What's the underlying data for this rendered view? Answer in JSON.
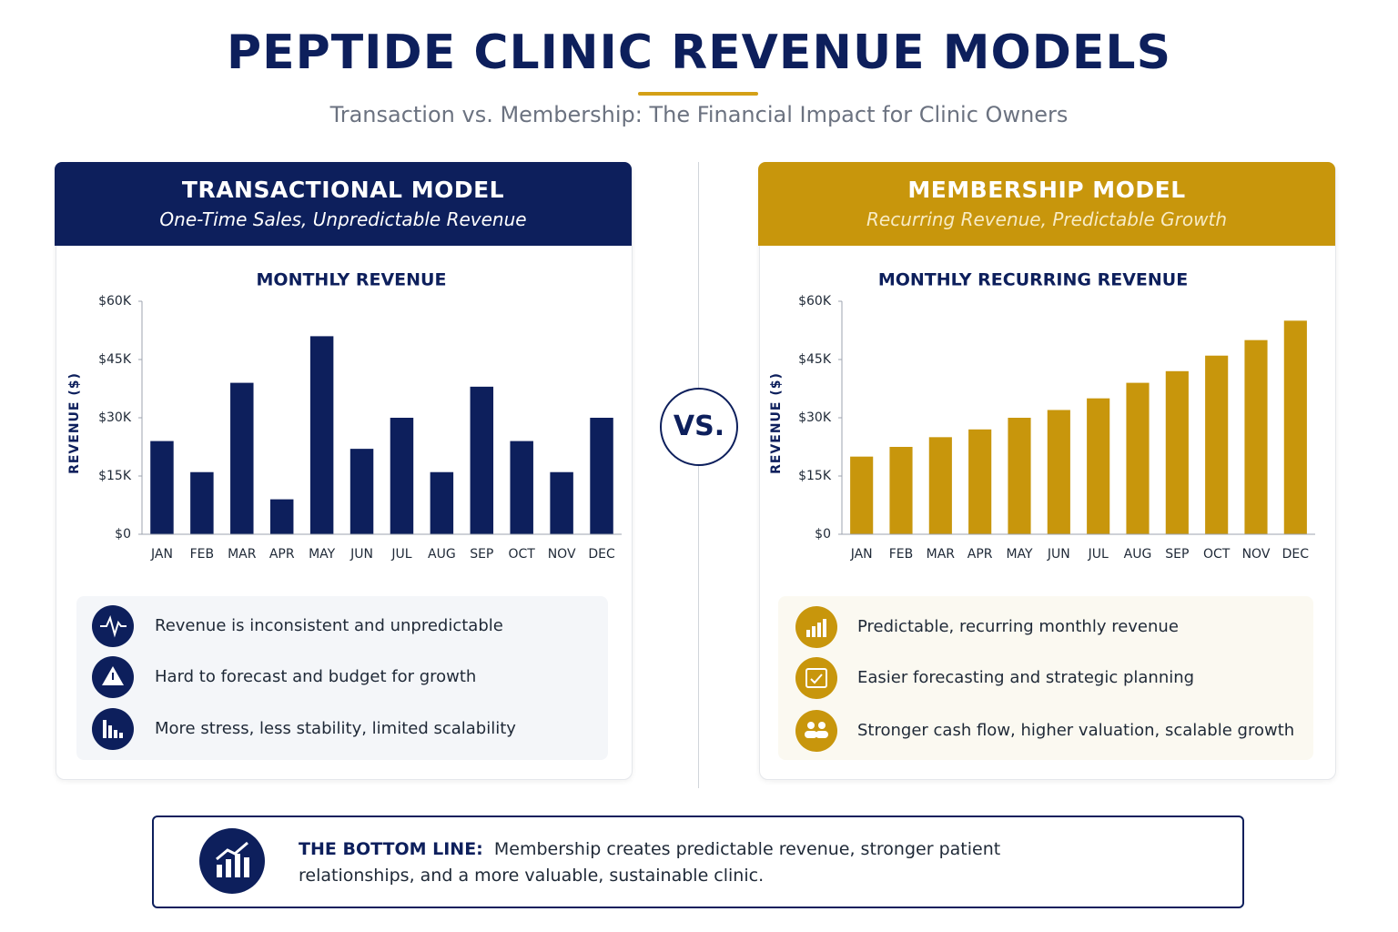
{
  "header": {
    "title": "PEPTIDE CLINIC REVENUE MODELS",
    "subtitle": "Transaction vs. Membership: The Financial Impact for Clinic Owners"
  },
  "vs": "VS.",
  "panels": [
    {
      "title": "TRANSACTIONAL MODEL",
      "subtitle": "One-Time Sales, Unpredictable Revenue",
      "points": [
        "Revenue is inconsistent and unpredictable",
        "Hard to forecast and budget for growth",
        "More stress, less stability, limited scalability"
      ]
    },
    {
      "title": "MEMBERSHIP MODEL",
      "subtitle": "Recurring Revenue, Predictable Growth",
      "points": [
        "Predictable, recurring monthly revenue",
        "Easier forecasting and strategic planning",
        "Stronger cash flow, higher valuation, scalable growth"
      ]
    }
  ],
  "chart_data": [
    {
      "type": "bar",
      "title": "MONTHLY REVENUE",
      "y_label": "REVENUE ($)",
      "categories": [
        "JAN",
        "FEB",
        "MAR",
        "APR",
        "MAY",
        "JUN",
        "JUL",
        "AUG",
        "SEP",
        "OCT",
        "NOV",
        "DEC"
      ],
      "values": [
        24000,
        16000,
        39000,
        9000,
        51000,
        22000,
        30000,
        16000,
        38000,
        24000,
        16000,
        30000
      ],
      "color": "#0d1f5c",
      "ylim": [
        0,
        60000
      ],
      "yticks": [
        {
          "value": 0,
          "label": "$0"
        },
        {
          "value": 15000,
          "label": "$15K"
        },
        {
          "value": 30000,
          "label": "$30K"
        },
        {
          "value": 45000,
          "label": "$45K"
        },
        {
          "value": 60000,
          "label": "$60K"
        }
      ]
    },
    {
      "type": "bar",
      "title": "MONTHLY RECURRING REVENUE",
      "y_label": "REVENUE ($)",
      "categories": [
        "JAN",
        "FEB",
        "MAR",
        "APR",
        "MAY",
        "JUN",
        "JUL",
        "AUG",
        "SEP",
        "OCT",
        "NOV",
        "DEC"
      ],
      "values": [
        20000,
        22500,
        25000,
        27000,
        30000,
        32000,
        35000,
        39000,
        42000,
        46000,
        50000,
        55000
      ],
      "color": "#c8960c",
      "ylim": [
        0,
        60000
      ],
      "yticks": [
        {
          "value": 0,
          "label": "$0"
        },
        {
          "value": 15000,
          "label": "$15K"
        },
        {
          "value": 30000,
          "label": "$30K"
        },
        {
          "value": 45000,
          "label": "$45K"
        },
        {
          "value": 60000,
          "label": "$60K"
        }
      ]
    }
  ],
  "bottom_line": {
    "label": "THE BOTTOM LINE:",
    "text": "Membership creates predictable revenue, stronger patient relationships, and a more valuable, sustainable clinic."
  }
}
